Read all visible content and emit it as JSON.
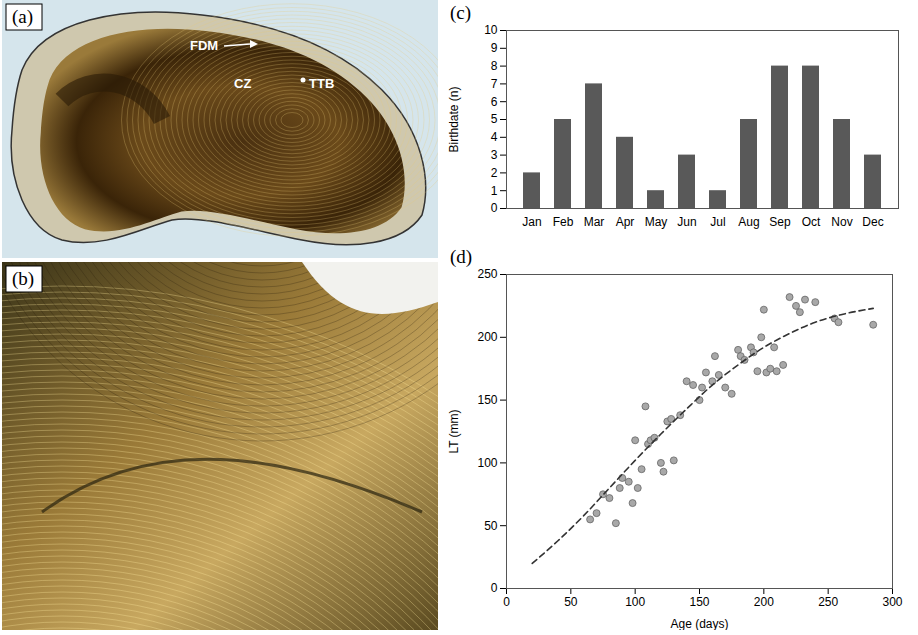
{
  "chart_data": [
    {
      "type": "bar",
      "panel": "(c)",
      "y_label": "Birthdate (n)",
      "categories": [
        "Jan",
        "Feb",
        "Mar",
        "Apr",
        "May",
        "Jun",
        "Jul",
        "Aug",
        "Sep",
        "Oct",
        "Nov",
        "Dec"
      ],
      "values": [
        2,
        5,
        7,
        4,
        1,
        3,
        1,
        5,
        8,
        8,
        5,
        3
      ],
      "color": "#595959",
      "ylim": [
        0,
        10
      ],
      "yticks": [
        0,
        1,
        2,
        3,
        4,
        5,
        6,
        7,
        8,
        9,
        10
      ],
      "grid": false
    },
    {
      "type": "scatter",
      "panel": "(d)",
      "x_label": "Age (days)",
      "y_label": "LT (mm)",
      "points": {
        "marker": "circle",
        "color": "#a8a8a8",
        "x": [
          65,
          70,
          75,
          80,
          85,
          88,
          90,
          95,
          98,
          100,
          102,
          105,
          108,
          110,
          112,
          115,
          120,
          122,
          125,
          128,
          130,
          135,
          140,
          145,
          150,
          152,
          155,
          160,
          162,
          165,
          170,
          175,
          180,
          182,
          185,
          190,
          192,
          195,
          198,
          200,
          202,
          205,
          208,
          210,
          215,
          220,
          225,
          228,
          232,
          240,
          255,
          258,
          285
        ],
        "y": [
          55,
          60,
          75,
          72,
          52,
          80,
          88,
          85,
          68,
          118,
          80,
          95,
          145,
          115,
          118,
          120,
          100,
          93,
          133,
          135,
          102,
          138,
          165,
          162,
          150,
          160,
          172,
          165,
          185,
          170,
          160,
          155,
          190,
          185,
          182,
          192,
          188,
          173,
          200,
          222,
          172,
          175,
          192,
          173,
          178,
          232,
          225,
          220,
          230,
          228,
          215,
          212,
          210
        ]
      },
      "curve": {
        "line_style": "dashed",
        "color": "#333333",
        "x": [
          20,
          40,
          60,
          80,
          100,
          120,
          140,
          160,
          180,
          200,
          220,
          240,
          260,
          285
        ],
        "y": [
          20,
          38,
          58,
          80,
          102,
          123,
          143,
          162,
          178,
          192,
          203,
          212,
          218,
          223
        ]
      },
      "xlim": [
        0,
        300
      ],
      "xticks": [
        0,
        50,
        100,
        150,
        200,
        250,
        300
      ],
      "ylim": [
        0,
        250
      ],
      "yticks": [
        0,
        50,
        100,
        150,
        200,
        250
      ],
      "grid": false
    }
  ],
  "images": [
    {
      "panel": "(a)",
      "labels": [
        "FDM",
        "CZ",
        "TTB"
      ]
    },
    {
      "panel": "(b)"
    }
  ]
}
